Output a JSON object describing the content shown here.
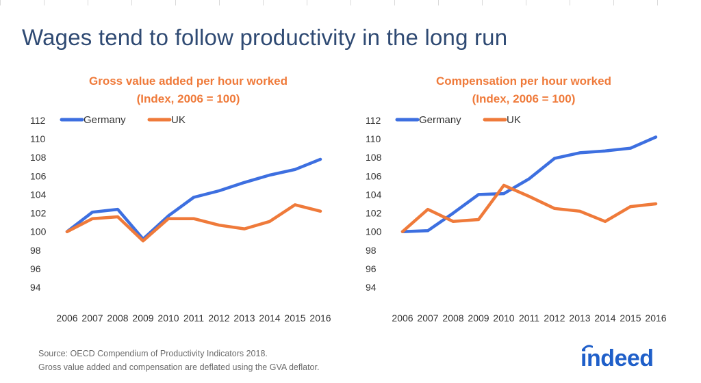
{
  "page": {
    "title": "Wages tend to follow productivity in the long run",
    "source_lines": [
      "Source: OECD Compendium of Productivity Indicators 2018.",
      "Gross value added and compensation are deflated using the GVA deflator."
    ],
    "logo": "indeed"
  },
  "colors": {
    "germany": "#3d6fe0",
    "uk": "#ef7a3a",
    "title": "#2f4a73",
    "chart_title": "#ef7a3a",
    "logo": "#1f5fc9"
  },
  "chart_data": [
    {
      "type": "line",
      "title_lines": [
        "Gross value added per hour worked",
        "(Index, 2006 = 100)"
      ],
      "x": [
        "2006",
        "2007",
        "2008",
        "2009",
        "2010",
        "2011",
        "2012",
        "2013",
        "2014",
        "2015",
        "2016"
      ],
      "series": [
        {
          "name": "Germany",
          "values": [
            100.0,
            102.1,
            102.4,
            99.2,
            101.7,
            103.7,
            104.4,
            105.3,
            106.1,
            106.7,
            107.8
          ]
        },
        {
          "name": "UK",
          "values": [
            100.0,
            101.4,
            101.6,
            99.0,
            101.4,
            101.4,
            100.7,
            100.3,
            101.1,
            102.9,
            102.2
          ]
        }
      ],
      "ylim": [
        94,
        112
      ],
      "yticks": [
        94,
        96,
        98,
        100,
        102,
        104,
        106,
        108,
        110,
        112
      ],
      "grid": false,
      "legend": "top-left"
    },
    {
      "type": "line",
      "title_lines": [
        "Compensation per hour worked",
        "(Index, 2006 = 100)"
      ],
      "x": [
        "2006",
        "2007",
        "2008",
        "2009",
        "2010",
        "2011",
        "2012",
        "2013",
        "2014",
        "2015",
        "2016"
      ],
      "series": [
        {
          "name": "Germany",
          "values": [
            100.0,
            100.1,
            102.0,
            104.0,
            104.1,
            105.7,
            107.9,
            108.5,
            108.7,
            109.0,
            110.2
          ]
        },
        {
          "name": "UK",
          "values": [
            100.0,
            102.4,
            101.1,
            101.3,
            105.0,
            103.8,
            102.5,
            102.2,
            101.1,
            102.7,
            103.0
          ]
        }
      ],
      "ylim": [
        94,
        112
      ],
      "yticks": [
        94,
        96,
        98,
        100,
        102,
        104,
        106,
        108,
        110,
        112
      ],
      "grid": false,
      "legend": "top-left"
    }
  ]
}
